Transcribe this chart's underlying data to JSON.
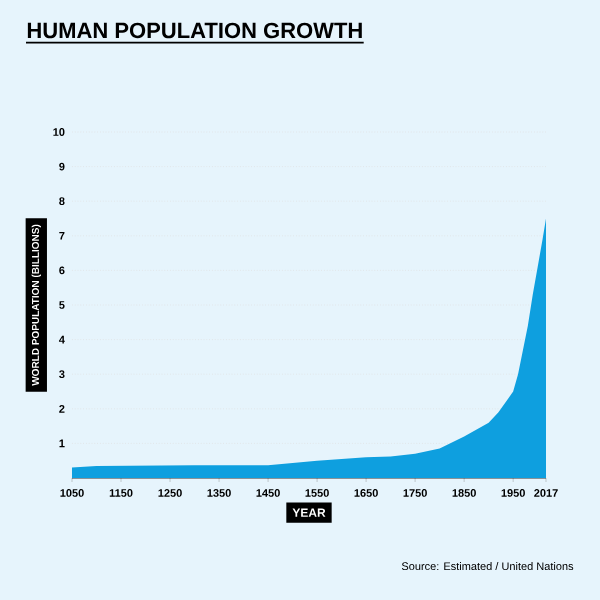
{
  "chart_data": {
    "type": "area",
    "title": "HUMAN POPULATION GROWTH",
    "xlabel": "YEAR",
    "ylabel": "WORLD POPULATION (BILLIONS)",
    "x": [
      1050,
      1100,
      1200,
      1300,
      1400,
      1450,
      1500,
      1550,
      1600,
      1650,
      1700,
      1750,
      1800,
      1850,
      1900,
      1920,
      1940,
      1950,
      1960,
      1970,
      1980,
      1990,
      2000,
      2010,
      2017
    ],
    "series": [
      {
        "color": "#0e9fdf",
        "values": [
          0.3,
          0.35,
          0.36,
          0.37,
          0.37,
          0.37,
          0.43,
          0.5,
          0.55,
          0.6,
          0.62,
          0.7,
          0.85,
          1.2,
          1.6,
          1.9,
          2.3,
          2.5,
          3.0,
          3.7,
          4.4,
          5.3,
          6.1,
          6.9,
          7.5
        ]
      }
    ],
    "xlim": [
      1050,
      2017
    ],
    "xticks": [
      1050,
      1150,
      1250,
      1350,
      1450,
      1550,
      1650,
      1750,
      1850,
      1950,
      2017
    ],
    "ylim": [
      0,
      10
    ],
    "yticks": [
      1,
      2,
      3,
      4,
      5,
      6,
      7,
      8,
      9,
      10
    ],
    "grid": "y",
    "annotations": [
      "Source: Estimated / United Nations"
    ]
  }
}
